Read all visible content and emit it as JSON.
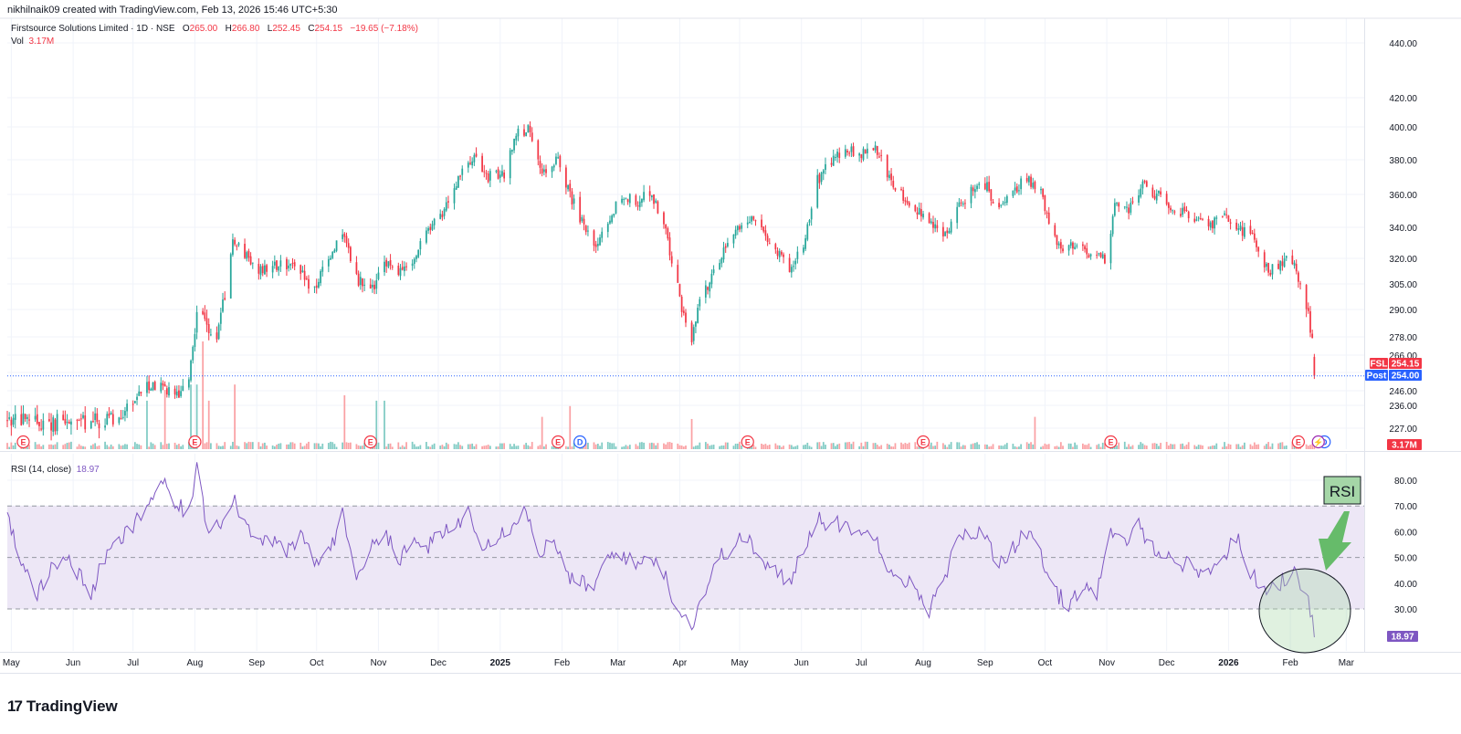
{
  "header": {
    "creator": "nikhilnaik09 created with TradingView.com, Feb 13, 2026 15:46 UTC+5:30",
    "symbol": "Firstsource Solutions Limited · 1D · NSE",
    "o_label": "O",
    "o": "265.00",
    "h_label": "H",
    "h": "266.80",
    "l_label": "L",
    "l": "252.45",
    "c_label": "C",
    "c": "254.15",
    "change": "−19.65 (−7.18%)",
    "vol_label": "Vol",
    "vol": "3.17M"
  },
  "badges": {
    "symbol_tag": "FSL",
    "last_price": "254.15",
    "post_tag": "Post",
    "post_price": "254.00",
    "vol_value": "3.17M",
    "rsi_value": "18.97"
  },
  "rsi": {
    "label": "RSI (14, close)",
    "value": "18.97"
  },
  "annotation": {
    "text": "RSI"
  },
  "event_markers": {
    "earnings_glyph": "E",
    "dividend_glyph": "D",
    "split_glyph": "⚡",
    "earnings_dates": [
      "2024-05-07",
      "2024-08-01",
      "2024-10-28",
      "2025-01-30",
      "2025-05-05",
      "2025-08-01",
      "2025-11-03",
      "2026-02-05"
    ],
    "dividend_dates": [
      "2025-02-10",
      "2026-02-18"
    ],
    "split_dates": [
      "2026-02-15"
    ]
  },
  "brand": {
    "logo": "17",
    "name": "TradingView"
  },
  "colors": {
    "up": "#26a69a",
    "down": "#f23645",
    "rsi_line": "#7e57c2",
    "rsi_band": "#ede7f6",
    "post": "#2962ff",
    "annotation_fill": "#a5d6a7"
  },
  "chart_data": [
    {
      "type": "candlestick",
      "title": "Firstsource Solutions Limited · 1D · NSE",
      "x_type": "date",
      "x_range": [
        "2024-04-29",
        "2026-03-10"
      ],
      "y_ticks": [
        440,
        420,
        400,
        380,
        360,
        340,
        320,
        305,
        290,
        278,
        266,
        256,
        246,
        236,
        227
      ],
      "y_tick_labels": [
        "440.00",
        "420.00",
        "400.00",
        "380.00",
        "360.00",
        "340.00",
        "320.00",
        "305.00",
        "290.00",
        "278.00",
        "266.00",
        "256.00",
        "246.00",
        "236.00",
        "227.00"
      ],
      "x_tick_labels": [
        {
          "date": "2024-05-01",
          "label": "May"
        },
        {
          "date": "2024-06-01",
          "label": "Jun"
        },
        {
          "date": "2024-07-01",
          "label": "Jul"
        },
        {
          "date": "2024-08-01",
          "label": "Aug"
        },
        {
          "date": "2024-09-01",
          "label": "Sep"
        },
        {
          "date": "2024-10-01",
          "label": "Oct"
        },
        {
          "date": "2024-11-01",
          "label": "Nov"
        },
        {
          "date": "2024-12-01",
          "label": "Dec"
        },
        {
          "date": "2025-01-01",
          "label": "2025"
        },
        {
          "date": "2025-02-01",
          "label": "Feb"
        },
        {
          "date": "2025-03-01",
          "label": "Mar"
        },
        {
          "date": "2025-04-01",
          "label": "Apr"
        },
        {
          "date": "2025-05-01",
          "label": "May"
        },
        {
          "date": "2025-06-01",
          "label": "Jun"
        },
        {
          "date": "2025-07-01",
          "label": "Jul"
        },
        {
          "date": "2025-08-01",
          "label": "Aug"
        },
        {
          "date": "2025-09-01",
          "label": "Sep"
        },
        {
          "date": "2025-10-01",
          "label": "Oct"
        },
        {
          "date": "2025-11-01",
          "label": "Nov"
        },
        {
          "date": "2025-12-01",
          "label": "Dec"
        },
        {
          "date": "2026-01-01",
          "label": "2026"
        },
        {
          "date": "2026-02-01",
          "label": "Feb"
        },
        {
          "date": "2026-03-01",
          "label": "Mar"
        }
      ],
      "price_path": [
        [
          "2024-04-29",
          230
        ],
        [
          "2024-05-20",
          229
        ],
        [
          "2024-06-20",
          230
        ],
        [
          "2024-07-01",
          238
        ],
        [
          "2024-07-08",
          250
        ],
        [
          "2024-07-15",
          248
        ],
        [
          "2024-07-24",
          244
        ],
        [
          "2024-07-29",
          252
        ],
        [
          "2024-08-02",
          292
        ],
        [
          "2024-08-06",
          285
        ],
        [
          "2024-08-12",
          278
        ],
        [
          "2024-08-16",
          298
        ],
        [
          "2024-08-20",
          332
        ],
        [
          "2024-08-26",
          322
        ],
        [
          "2024-09-03",
          312
        ],
        [
          "2024-09-12",
          316
        ],
        [
          "2024-09-20",
          318
        ],
        [
          "2024-09-27",
          305
        ],
        [
          "2024-10-01",
          304
        ],
        [
          "2024-10-07",
          320
        ],
        [
          "2024-10-14",
          336
        ],
        [
          "2024-10-21",
          308
        ],
        [
          "2024-10-30",
          302
        ],
        [
          "2024-11-04",
          319
        ],
        [
          "2024-11-12",
          312
        ],
        [
          "2024-11-18",
          318
        ],
        [
          "2024-11-25",
          336
        ],
        [
          "2024-12-02",
          346
        ],
        [
          "2024-12-10",
          368
        ],
        [
          "2024-12-18",
          382
        ],
        [
          "2024-12-26",
          370
        ],
        [
          "2025-01-03",
          372
        ],
        [
          "2025-01-09",
          396
        ],
        [
          "2025-01-15",
          398
        ],
        [
          "2025-01-22",
          370
        ],
        [
          "2025-01-30",
          382
        ],
        [
          "2025-02-05",
          360
        ],
        [
          "2025-02-12",
          340
        ],
        [
          "2025-02-18",
          325
        ],
        [
          "2025-02-24",
          344
        ],
        [
          "2025-03-03",
          360
        ],
        [
          "2025-03-10",
          355
        ],
        [
          "2025-03-17",
          362
        ],
        [
          "2025-03-24",
          342
        ],
        [
          "2025-03-28",
          318
        ],
        [
          "2025-04-02",
          292
        ],
        [
          "2025-04-07",
          276
        ],
        [
          "2025-04-11",
          298
        ],
        [
          "2025-04-15",
          304
        ],
        [
          "2025-04-21",
          320
        ],
        [
          "2025-04-28",
          336
        ],
        [
          "2025-05-05",
          346
        ],
        [
          "2025-05-12",
          340
        ],
        [
          "2025-05-19",
          325
        ],
        [
          "2025-05-26",
          314
        ],
        [
          "2025-06-02",
          330
        ],
        [
          "2025-06-09",
          368
        ],
        [
          "2025-06-16",
          380
        ],
        [
          "2025-06-23",
          388
        ],
        [
          "2025-06-30",
          382
        ],
        [
          "2025-07-07",
          388
        ],
        [
          "2025-07-14",
          372
        ],
        [
          "2025-07-21",
          360
        ],
        [
          "2025-07-28",
          352
        ],
        [
          "2025-08-04",
          344
        ],
        [
          "2025-08-11",
          333
        ],
        [
          "2025-08-18",
          352
        ],
        [
          "2025-08-25",
          362
        ],
        [
          "2025-09-01",
          366
        ],
        [
          "2025-09-08",
          350
        ],
        [
          "2025-09-15",
          360
        ],
        [
          "2025-09-22",
          370
        ],
        [
          "2025-09-29",
          360
        ],
        [
          "2025-10-03",
          340
        ],
        [
          "2025-10-10",
          325
        ],
        [
          "2025-10-17",
          330
        ],
        [
          "2025-10-24",
          322
        ],
        [
          "2025-10-31",
          320
        ],
        [
          "2025-11-05",
          352
        ],
        [
          "2025-11-12",
          350
        ],
        [
          "2025-11-19",
          366
        ],
        [
          "2025-11-26",
          360
        ],
        [
          "2025-12-03",
          352
        ],
        [
          "2025-12-10",
          348
        ],
        [
          "2025-12-17",
          345
        ],
        [
          "2025-12-24",
          342
        ],
        [
          "2025-12-31",
          348
        ],
        [
          "2026-01-07",
          338
        ],
        [
          "2026-01-12",
          336
        ],
        [
          "2026-01-16",
          326
        ],
        [
          "2026-01-21",
          312
        ],
        [
          "2026-01-27",
          318
        ],
        [
          "2026-02-02",
          320
        ],
        [
          "2026-02-05",
          308
        ],
        [
          "2026-02-09",
          290
        ],
        [
          "2026-02-11",
          282
        ],
        [
          "2026-02-12",
          274
        ],
        [
          "2026-02-13",
          254.15
        ]
      ],
      "last_candle": {
        "date": "2026-02-13",
        "open": 265.0,
        "high": 266.8,
        "low": 252.45,
        "close": 254.15
      }
    },
    {
      "type": "bar",
      "title": "Vol",
      "series_label": "Vol",
      "last_value": "3.17M",
      "spikes": [
        {
          "date": "2024-07-08",
          "rel": 0.45
        },
        {
          "date": "2024-07-17",
          "rel": 0.55
        },
        {
          "date": "2024-07-30",
          "rel": 0.6
        },
        {
          "date": "2024-08-02",
          "rel": 0.6
        },
        {
          "date": "2024-08-05",
          "rel": 1.0
        },
        {
          "date": "2024-08-08",
          "rel": 0.45
        },
        {
          "date": "2024-08-21",
          "rel": 0.6
        },
        {
          "date": "2024-10-15",
          "rel": 0.5
        },
        {
          "date": "2024-10-31",
          "rel": 0.45
        },
        {
          "date": "2024-11-04",
          "rel": 0.45
        },
        {
          "date": "2025-01-22",
          "rel": 0.3
        },
        {
          "date": "2025-02-05",
          "rel": 0.4
        },
        {
          "date": "2025-04-07",
          "rel": 0.28
        },
        {
          "date": "2025-09-26",
          "rel": 0.3
        }
      ]
    },
    {
      "type": "line",
      "title": "RSI (14, close)",
      "series": [
        {
          "name": "RSI",
          "last": 18.97
        }
      ],
      "y_ticks": [
        80,
        70,
        60,
        50,
        40,
        30
      ],
      "y_tick_labels": [
        "80.00",
        "70.00",
        "60.00",
        "50.00",
        "40.00",
        "30.00"
      ],
      "band": [
        30,
        70
      ],
      "midline": 50,
      "values": [
        [
          "2024-04-29",
          68
        ],
        [
          "2024-05-06",
          48
        ],
        [
          "2024-05-13",
          35
        ],
        [
          "2024-05-20",
          44
        ],
        [
          "2024-05-27",
          52
        ],
        [
          "2024-06-03",
          44
        ],
        [
          "2024-06-10",
          36
        ],
        [
          "2024-06-17",
          50
        ],
        [
          "2024-06-24",
          56
        ],
        [
          "2024-07-01",
          62
        ],
        [
          "2024-07-08",
          70
        ],
        [
          "2024-07-15",
          80
        ],
        [
          "2024-07-22",
          70
        ],
        [
          "2024-07-29",
          68
        ],
        [
          "2024-08-02",
          84
        ],
        [
          "2024-08-07",
          62
        ],
        [
          "2024-08-14",
          64
        ],
        [
          "2024-08-20",
          74
        ],
        [
          "2024-08-27",
          62
        ],
        [
          "2024-09-03",
          58
        ],
        [
          "2024-09-10",
          56
        ],
        [
          "2024-09-17",
          52
        ],
        [
          "2024-09-24",
          58
        ],
        [
          "2024-09-30",
          48
        ],
        [
          "2024-10-07",
          52
        ],
        [
          "2024-10-14",
          66
        ],
        [
          "2024-10-21",
          44
        ],
        [
          "2024-10-28",
          52
        ],
        [
          "2024-11-04",
          62
        ],
        [
          "2024-11-11",
          48
        ],
        [
          "2024-11-18",
          56
        ],
        [
          "2024-11-25",
          54
        ],
        [
          "2024-12-02",
          58
        ],
        [
          "2024-12-09",
          62
        ],
        [
          "2024-12-16",
          68
        ],
        [
          "2024-12-23",
          56
        ],
        [
          "2024-12-30",
          58
        ],
        [
          "2025-01-06",
          62
        ],
        [
          "2025-01-13",
          70
        ],
        [
          "2025-01-20",
          52
        ],
        [
          "2025-01-27",
          56
        ],
        [
          "2025-02-03",
          44
        ],
        [
          "2025-02-10",
          40
        ],
        [
          "2025-02-17",
          38
        ],
        [
          "2025-02-24",
          50
        ],
        [
          "2025-03-03",
          52
        ],
        [
          "2025-03-10",
          46
        ],
        [
          "2025-03-17",
          52
        ],
        [
          "2025-03-24",
          44
        ],
        [
          "2025-03-31",
          30
        ],
        [
          "2025-04-07",
          24
        ],
        [
          "2025-04-14",
          38
        ],
        [
          "2025-04-21",
          50
        ],
        [
          "2025-04-28",
          55
        ],
        [
          "2025-05-05",
          58
        ],
        [
          "2025-05-12",
          48
        ],
        [
          "2025-05-19",
          44
        ],
        [
          "2025-05-26",
          40
        ],
        [
          "2025-06-02",
          54
        ],
        [
          "2025-06-09",
          66
        ],
        [
          "2025-06-16",
          62
        ],
        [
          "2025-06-23",
          64
        ],
        [
          "2025-06-30",
          58
        ],
        [
          "2025-07-07",
          60
        ],
        [
          "2025-07-14",
          48
        ],
        [
          "2025-07-21",
          42
        ],
        [
          "2025-07-28",
          38
        ],
        [
          "2025-08-04",
          30
        ],
        [
          "2025-08-11",
          40
        ],
        [
          "2025-08-18",
          56
        ],
        [
          "2025-08-25",
          60
        ],
        [
          "2025-09-01",
          58
        ],
        [
          "2025-09-08",
          48
        ],
        [
          "2025-09-15",
          54
        ],
        [
          "2025-09-22",
          60
        ],
        [
          "2025-09-29",
          50
        ],
        [
          "2025-10-06",
          36
        ],
        [
          "2025-10-13",
          32
        ],
        [
          "2025-10-20",
          40
        ],
        [
          "2025-10-27",
          36
        ],
        [
          "2025-11-03",
          58
        ],
        [
          "2025-11-10",
          56
        ],
        [
          "2025-11-17",
          62
        ],
        [
          "2025-11-24",
          55
        ],
        [
          "2025-12-01",
          50
        ],
        [
          "2025-12-08",
          48
        ],
        [
          "2025-12-15",
          46
        ],
        [
          "2025-12-22",
          44
        ],
        [
          "2025-12-29",
          50
        ],
        [
          "2026-01-05",
          58
        ],
        [
          "2026-01-12",
          44
        ],
        [
          "2026-01-19",
          38
        ],
        [
          "2026-01-26",
          40
        ],
        [
          "2026-02-02",
          44
        ],
        [
          "2026-02-06",
          40
        ],
        [
          "2026-02-09",
          36
        ],
        [
          "2026-02-11",
          30
        ],
        [
          "2026-02-13",
          18.97
        ]
      ]
    }
  ]
}
